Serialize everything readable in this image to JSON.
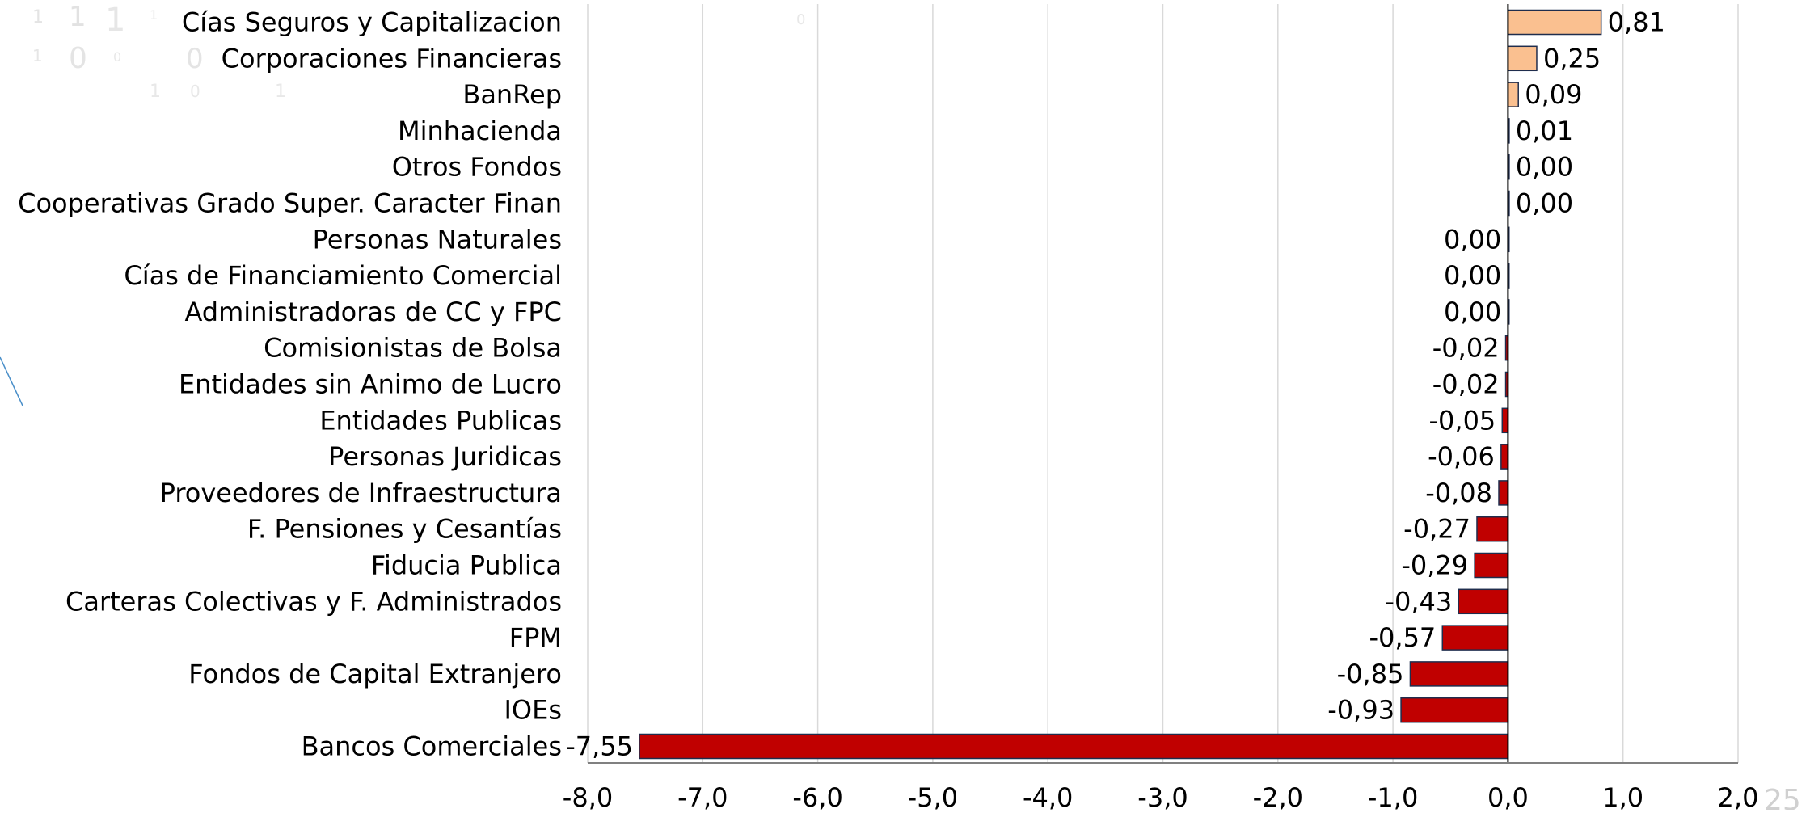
{
  "chart_data": {
    "type": "bar",
    "orientation": "horizontal",
    "title": "",
    "xlabel": "",
    "ylabel": "",
    "xlim": [
      -8.0,
      2.0
    ],
    "grid": "vertical",
    "legend": "none",
    "x_ticks": [
      "-8,0",
      "-7,0",
      "-6,0",
      "-5,0",
      "-4,0",
      "-3,0",
      "-2,0",
      "-1,0",
      "0,0",
      "1,0",
      "2,0"
    ],
    "categories": [
      "Cías Seguros y Capitalizacion",
      "Corporaciones Financieras",
      "BanRep",
      "Minhacienda",
      "Otros Fondos",
      "Cooperativas Grado Super. Caracter Finan",
      "Personas Naturales",
      "Cías de Financiamiento Comercial",
      "Administradoras de CC y FPC",
      "Comisionistas de Bolsa",
      "Entidades sin Animo de Lucro",
      "Entidades Publicas",
      "Personas Juridicas",
      "Proveedores de Infraestructura",
      "F. Pensiones y Cesantías",
      "Fiducia Publica",
      "Carteras Colectivas y F. Administrados",
      "FPM",
      "Fondos de Capital Extranjero",
      "IOEs",
      "Bancos Comerciales"
    ],
    "values": [
      0.81,
      0.25,
      0.09,
      0.01,
      0.0,
      0.0,
      -0.001,
      -0.001,
      -0.001,
      -0.02,
      -0.02,
      -0.05,
      -0.06,
      -0.08,
      -0.27,
      -0.29,
      -0.43,
      -0.57,
      -0.85,
      -0.93,
      -7.55
    ],
    "value_labels": [
      "0,81",
      "0,25",
      "0,09",
      "0,01",
      "0,00",
      "0,00",
      "0,00",
      "0,00",
      "0,00",
      "-0,02",
      "-0,02",
      "-0,05",
      "-0,06",
      "-0,08",
      "-0,27",
      "-0,29",
      "-0,43",
      "-0,57",
      "-0,85",
      "-0,93",
      "-7,55"
    ],
    "colors": {
      "positive_fill": "#FAC090",
      "negative_fill": "#C00000",
      "bar_stroke": "#1F2D4D",
      "grid": "#D9D9D9",
      "axis": "#000000"
    }
  },
  "page_number": "25"
}
